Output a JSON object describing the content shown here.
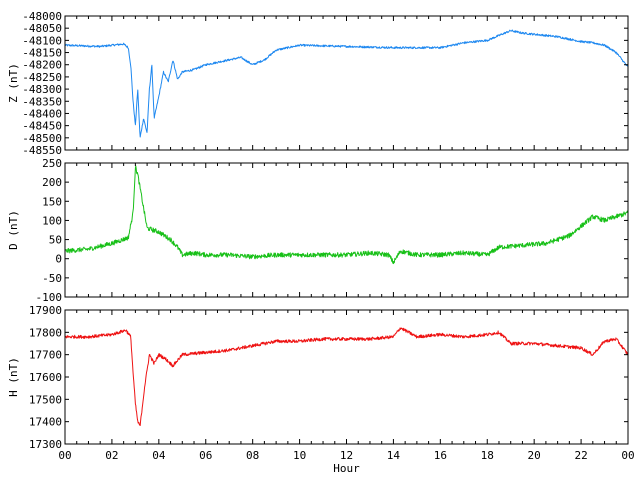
{
  "chart_data": {
    "type": "line",
    "x": {
      "label": "Hour",
      "range": [
        0,
        24
      ],
      "major_ticks": [
        0,
        2,
        4,
        6,
        8,
        10,
        12,
        14,
        16,
        18,
        20,
        22,
        24
      ],
      "tick_labels": [
        "00",
        "02",
        "04",
        "06",
        "08",
        "10",
        "12",
        "14",
        "16",
        "18",
        "20",
        "22",
        "00"
      ],
      "minor_tick_step": 0.5
    },
    "panels": [
      {
        "id": "z",
        "ylabel": "Z (nT)",
        "ylim": [
          -48550,
          -48000
        ],
        "yticks": [
          -48000,
          -48050,
          -48100,
          -48150,
          -48200,
          -48250,
          -48300,
          -48350,
          -48400,
          -48450,
          -48500,
          -48550
        ],
        "color": "#1e88f0",
        "noise": 4,
        "anchors": [
          [
            0,
            -48120
          ],
          [
            1.5,
            -48125
          ],
          [
            2.5,
            -48115
          ],
          [
            2.7,
            -48130
          ],
          [
            2.8,
            -48200
          ],
          [
            2.9,
            -48350
          ],
          [
            3.0,
            -48450
          ],
          [
            3.1,
            -48300
          ],
          [
            3.2,
            -48500
          ],
          [
            3.35,
            -48420
          ],
          [
            3.5,
            -48480
          ],
          [
            3.6,
            -48300
          ],
          [
            3.7,
            -48200
          ],
          [
            3.8,
            -48420
          ],
          [
            4.0,
            -48330
          ],
          [
            4.2,
            -48230
          ],
          [
            4.4,
            -48270
          ],
          [
            4.6,
            -48180
          ],
          [
            4.8,
            -48260
          ],
          [
            5.0,
            -48230
          ],
          [
            5.5,
            -48220
          ],
          [
            6.0,
            -48200
          ],
          [
            7.0,
            -48180
          ],
          [
            7.5,
            -48170
          ],
          [
            8.0,
            -48200
          ],
          [
            8.5,
            -48180
          ],
          [
            9.0,
            -48140
          ],
          [
            10.0,
            -48120
          ],
          [
            12.0,
            -48125
          ],
          [
            14.0,
            -48130
          ],
          [
            16.0,
            -48130
          ],
          [
            17.0,
            -48110
          ],
          [
            18.0,
            -48100
          ],
          [
            18.5,
            -48080
          ],
          [
            19.0,
            -48060
          ],
          [
            19.5,
            -48070
          ],
          [
            20.5,
            -48080
          ],
          [
            21.0,
            -48085
          ],
          [
            21.5,
            -48095
          ],
          [
            22.0,
            -48105
          ],
          [
            22.5,
            -48110
          ],
          [
            23.0,
            -48120
          ],
          [
            23.5,
            -48150
          ],
          [
            24.0,
            -48210
          ]
        ]
      },
      {
        "id": "d",
        "ylabel": "D (nT)",
        "ylim": [
          -100,
          250
        ],
        "yticks": [
          -100,
          -50,
          0,
          50,
          100,
          150,
          200,
          250
        ],
        "color": "#18c018",
        "noise": 6,
        "anchors": [
          [
            0,
            20
          ],
          [
            1.0,
            25
          ],
          [
            2.0,
            40
          ],
          [
            2.7,
            55
          ],
          [
            2.9,
            120
          ],
          [
            3.0,
            240
          ],
          [
            3.1,
            220
          ],
          [
            3.3,
            150
          ],
          [
            3.5,
            80
          ],
          [
            4.0,
            70
          ],
          [
            4.5,
            50
          ],
          [
            4.8,
            30
          ],
          [
            5.0,
            10
          ],
          [
            5.5,
            15
          ],
          [
            6.0,
            10
          ],
          [
            7.0,
            10
          ],
          [
            8.0,
            5
          ],
          [
            9.0,
            10
          ],
          [
            10.0,
            10
          ],
          [
            11.0,
            10
          ],
          [
            12.0,
            10
          ],
          [
            13.0,
            15
          ],
          [
            13.8,
            10
          ],
          [
            14.0,
            -10
          ],
          [
            14.3,
            20
          ],
          [
            15.0,
            10
          ],
          [
            16.0,
            10
          ],
          [
            17.0,
            15
          ],
          [
            18.0,
            10
          ],
          [
            18.5,
            30
          ],
          [
            19.5,
            35
          ],
          [
            20.5,
            40
          ],
          [
            21.5,
            60
          ],
          [
            22.5,
            110
          ],
          [
            23.0,
            100
          ],
          [
            23.5,
            110
          ],
          [
            24.0,
            120
          ]
        ]
      },
      {
        "id": "h",
        "ylabel": "H (nT)",
        "ylim": [
          17300,
          17900
        ],
        "yticks": [
          17300,
          17400,
          17500,
          17600,
          17700,
          17800,
          17900
        ],
        "color": "#ee1111",
        "noise": 7,
        "anchors": [
          [
            0,
            17780
          ],
          [
            1.0,
            17780
          ],
          [
            2.0,
            17790
          ],
          [
            2.6,
            17810
          ],
          [
            2.8,
            17780
          ],
          [
            2.9,
            17620
          ],
          [
            3.0,
            17480
          ],
          [
            3.1,
            17400
          ],
          [
            3.2,
            17380
          ],
          [
            3.4,
            17560
          ],
          [
            3.6,
            17700
          ],
          [
            3.8,
            17660
          ],
          [
            4.0,
            17700
          ],
          [
            4.3,
            17680
          ],
          [
            4.6,
            17650
          ],
          [
            5.0,
            17700
          ],
          [
            6.0,
            17710
          ],
          [
            7.0,
            17720
          ],
          [
            8.0,
            17740
          ],
          [
            9.0,
            17760
          ],
          [
            10.0,
            17760
          ],
          [
            11.0,
            17770
          ],
          [
            12.0,
            17770
          ],
          [
            13.0,
            17770
          ],
          [
            14.0,
            17780
          ],
          [
            14.3,
            17820
          ],
          [
            15.0,
            17780
          ],
          [
            16.0,
            17790
          ],
          [
            17.0,
            17780
          ],
          [
            18.0,
            17790
          ],
          [
            18.5,
            17800
          ],
          [
            19.0,
            17750
          ],
          [
            20.0,
            17750
          ],
          [
            21.0,
            17740
          ],
          [
            22.0,
            17730
          ],
          [
            22.5,
            17700
          ],
          [
            23.0,
            17760
          ],
          [
            23.5,
            17770
          ],
          [
            24.0,
            17700
          ]
        ]
      }
    ]
  }
}
